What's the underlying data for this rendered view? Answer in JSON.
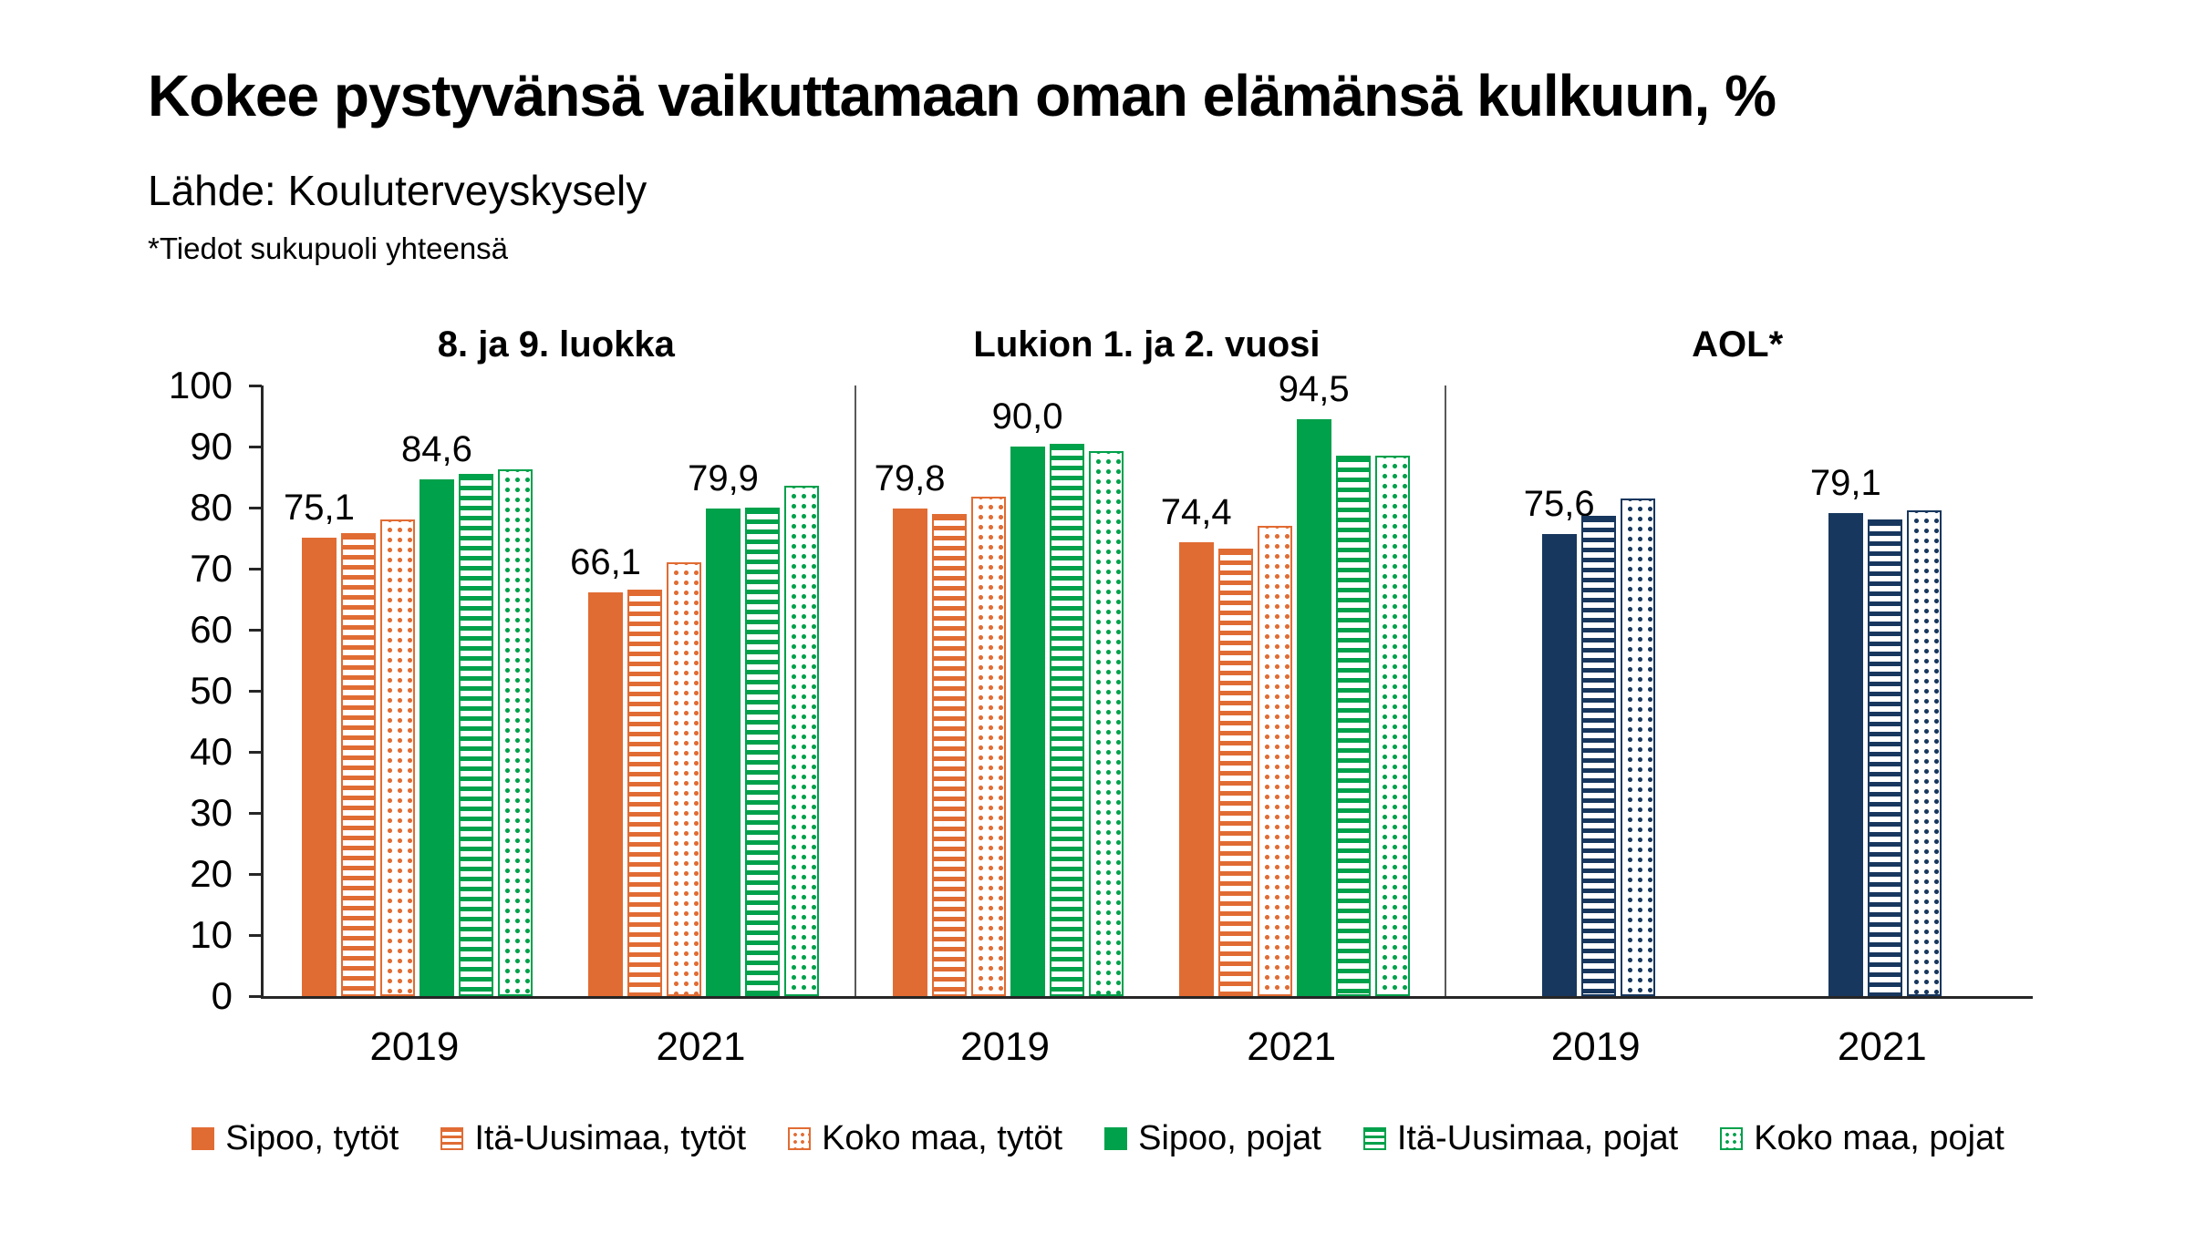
{
  "page": {
    "title": "Kokee pystyvänsä vaikuttamaan oman elämänsä kulkuun, %",
    "subtitle": "Lähde: Kouluterveyskysely",
    "note": "*Tiedot sukupuoli yhteensä"
  },
  "chart_data": {
    "type": "bar",
    "title": "Kokee pystyvänsä vaikuttamaan oman elämänsä kulkuun, %",
    "subtitle": "Lähde: Kouluterveyskysely",
    "note": "*Tiedot sukupuoli yhteensä",
    "ylim": [
      0,
      100
    ],
    "yticks": [
      0,
      10,
      20,
      30,
      40,
      50,
      60,
      70,
      80,
      90,
      100
    ],
    "grid": false,
    "legend_position": "bottom",
    "group_center_fractions": [
      0.26,
      0.745
    ],
    "series_styles": [
      {
        "name": "Sipoo, tytöt",
        "color": "#E16C33",
        "pattern": "solid"
      },
      {
        "name": "Itä-Uusimaa, tytöt",
        "color": "#E16C33",
        "pattern": "hstripes"
      },
      {
        "name": "Koko maa, tytöt",
        "color": "#E16C33",
        "pattern": "dots"
      },
      {
        "name": "Sipoo, pojat",
        "color": "#00A14B",
        "pattern": "solid"
      },
      {
        "name": "Itä-Uusimaa, pojat",
        "color": "#00A14B",
        "pattern": "hstripes"
      },
      {
        "name": "Koko maa, pojat",
        "color": "#00A14B",
        "pattern": "dots"
      }
    ],
    "aol_color": "#17375E",
    "aol_patterns": [
      "solid",
      "hstripes",
      "dots"
    ],
    "panels": [
      {
        "title": "8. ja 9. luokka",
        "aol": false,
        "groups": [
          {
            "label": "2019",
            "values": [
              75.1,
              75.8,
              78.0,
              84.6,
              85.5,
              86.2
            ],
            "value_labels": {
              "0": "75,1",
              "3": "84,6"
            }
          },
          {
            "label": "2021",
            "values": [
              66.1,
              66.6,
              71.0,
              79.9,
              80.0,
              83.6
            ],
            "value_labels": {
              "0": "66,1",
              "3": "79,9"
            }
          }
        ]
      },
      {
        "title": "Lukion 1. ja 2. vuosi",
        "aol": false,
        "groups": [
          {
            "label": "2019",
            "values": [
              79.8,
              79.0,
              81.8,
              90.0,
              90.4,
              89.2
            ],
            "value_labels": {
              "0": "79,8",
              "3": "90,0"
            }
          },
          {
            "label": "2021",
            "values": [
              74.4,
              73.3,
              77.0,
              94.5,
              88.5,
              88.5
            ],
            "value_labels": {
              "0": "74,4",
              "3": "94,5"
            }
          }
        ]
      },
      {
        "title": "AOL*",
        "aol": true,
        "groups": [
          {
            "label": "2019",
            "values": [
              75.6,
              78.6,
              81.5
            ],
            "value_labels": {
              "0": "75,6"
            }
          },
          {
            "label": "2021",
            "values": [
              79.1,
              78.0,
              79.6
            ],
            "value_labels": {
              "0": "79,1"
            }
          }
        ]
      }
    ]
  }
}
